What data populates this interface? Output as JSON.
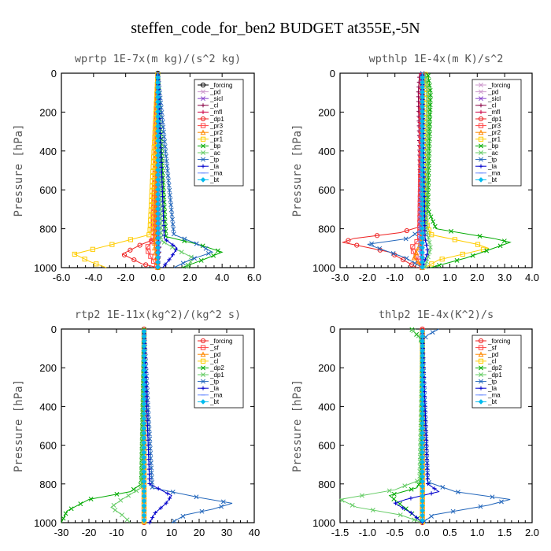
{
  "title": "steffen_code_for_ben2  BUDGET at355E,-5N",
  "chart_data": [
    {
      "type": "line",
      "title": "wprtp  1E-7x(m kg)/(s^2 kg)",
      "ylabel": "Pressure [hPa]",
      "xlim": [
        -6,
        6
      ],
      "ylim": [
        1000,
        0
      ],
      "xticks": [
        "-6.0",
        "-4.0",
        "-2.0",
        "0.0",
        "2.0",
        "4.0",
        "6.0"
      ],
      "yticks": [
        "0",
        "200",
        "400",
        "600",
        "800",
        "1000"
      ],
      "legend_position": "top-right",
      "series": [
        {
          "name": "_forcing",
          "color": "#000000",
          "marker": "o",
          "x": [
            0,
            0,
            0,
            0,
            0
          ],
          "y": [
            0,
            800,
            900,
            950,
            1000
          ]
        },
        {
          "name": "_pd",
          "color": "#cc99cc",
          "marker": "x",
          "x": [
            0,
            0
          ],
          "y": [
            0,
            1000
          ]
        },
        {
          "name": "_sicl",
          "color": "#8844cc",
          "marker": "x",
          "x": [
            0,
            0
          ],
          "y": [
            0,
            1000
          ]
        },
        {
          "name": "_cl",
          "color": "#880044",
          "marker": "+",
          "x": [
            0,
            0,
            0.1,
            0
          ],
          "y": [
            0,
            820,
            900,
            1000
          ]
        },
        {
          "name": "_mfl",
          "color": "#cc0044",
          "marker": "+",
          "x": [
            0,
            0,
            -0.1,
            0
          ],
          "y": [
            0,
            820,
            900,
            1000
          ]
        },
        {
          "name": "_dp1",
          "color": "#ee2222",
          "marker": "o",
          "x": [
            0,
            -0.1,
            -1.0,
            -2.2,
            -1.0,
            0
          ],
          "y": [
            0,
            850,
            880,
            930,
            980,
            1000
          ]
        },
        {
          "name": "_pr3",
          "color": "#ff4444",
          "marker": "s",
          "x": [
            0,
            -0.3,
            -0.7,
            -0.4,
            0
          ],
          "y": [
            0,
            860,
            900,
            950,
            1000
          ]
        },
        {
          "name": "_pr2",
          "color": "#ff8800",
          "marker": "^",
          "x": [
            0,
            -0.2,
            0
          ],
          "y": [
            0,
            900,
            1000
          ]
        },
        {
          "name": "_pr1",
          "color": "#ffcc00",
          "marker": "s",
          "x": [
            0,
            -0.5,
            -2.8,
            -5.2,
            -4.2,
            -3.2
          ],
          "y": [
            0,
            830,
            880,
            930,
            970,
            1000
          ]
        },
        {
          "name": "_bp",
          "color": "#00aa00",
          "marker": "x",
          "x": [
            0,
            0.5,
            2.5,
            4.0,
            2.8,
            1.5
          ],
          "y": [
            0,
            840,
            880,
            920,
            960,
            1000
          ]
        },
        {
          "name": "_ac",
          "color": "#66cc66",
          "marker": "x",
          "x": [
            0,
            0.2,
            1.0,
            2.2,
            1.8
          ],
          "y": [
            0,
            860,
            900,
            950,
            1000
          ]
        },
        {
          "name": "_tp",
          "color": "#2266bb",
          "marker": "x",
          "x": [
            0,
            1.0,
            2.5,
            3.4,
            2.0,
            1.0
          ],
          "y": [
            0,
            830,
            880,
            920,
            960,
            1000
          ]
        },
        {
          "name": "_ta",
          "color": "#0000cc",
          "marker": "+",
          "x": [
            0,
            0.4,
            1.2,
            0.8,
            0.3
          ],
          "y": [
            0,
            850,
            900,
            950,
            1000
          ]
        },
        {
          "name": "_ma",
          "color": "#6688ff",
          "marker": "-",
          "x": [
            0,
            0.1,
            0
          ],
          "y": [
            0,
            900,
            1000
          ]
        },
        {
          "name": "_bt",
          "color": "#00bbee",
          "marker": "D",
          "x": [
            0,
            0,
            0
          ],
          "y": [
            0,
            900,
            1000
          ]
        }
      ]
    },
    {
      "type": "line",
      "title": "wpthlp  1E-4x(m K)/s^2",
      "ylabel": "Pressure [hPa]",
      "xlim": [
        -3,
        4
      ],
      "ylim": [
        1000,
        0
      ],
      "xticks": [
        "-3.0",
        "-2.0",
        "-1.0",
        "0.0",
        "1.0",
        "2.0",
        "3.0",
        "4.0"
      ],
      "yticks": [
        "0",
        "200",
        "400",
        "600",
        "800",
        "1000"
      ],
      "legend_position": "top-right",
      "series": [
        {
          "name": "_forcing",
          "color": "#cc99cc",
          "marker": "x",
          "x": [
            0,
            0,
            0
          ],
          "y": [
            0,
            800,
            1000
          ]
        },
        {
          "name": "_pd",
          "color": "#cc99cc",
          "marker": "x",
          "x": [
            0,
            0,
            0
          ],
          "y": [
            0,
            800,
            1000
          ]
        },
        {
          "name": "_sicl",
          "color": "#8844cc",
          "marker": "x",
          "x": [
            0,
            -0.05,
            -0.1,
            0
          ],
          "y": [
            0,
            100,
            800,
            1000
          ]
        },
        {
          "name": "_cl",
          "color": "#880044",
          "marker": "+",
          "x": [
            -0.1,
            -0.15,
            -0.05,
            0
          ],
          "y": [
            0,
            100,
            800,
            1000
          ]
        },
        {
          "name": "_mfl",
          "color": "#cc0044",
          "marker": "+",
          "x": [
            -0.05,
            -0.1,
            -0.05,
            0
          ],
          "y": [
            0,
            200,
            850,
            1000
          ]
        },
        {
          "name": "_dp1",
          "color": "#ee2222",
          "marker": "o",
          "x": [
            0,
            -0.1,
            -0.8,
            -2.5,
            -2.9,
            -1.2,
            -0.2
          ],
          "y": [
            0,
            790,
            820,
            850,
            870,
            920,
            1000
          ]
        },
        {
          "name": "_pr3",
          "color": "#ff4444",
          "marker": "s",
          "x": [
            0,
            -0.1,
            -0.4,
            0
          ],
          "y": [
            0,
            850,
            900,
            1000
          ]
        },
        {
          "name": "_pr2",
          "color": "#ff8800",
          "marker": "^",
          "x": [
            0,
            0,
            -0.3,
            0
          ],
          "y": [
            0,
            850,
            950,
            1000
          ]
        },
        {
          "name": "_pr1",
          "color": "#ffcc00",
          "marker": "s",
          "x": [
            0.1,
            0.15,
            0.1,
            0.3,
            2.0,
            2.4,
            0.6,
            0.1
          ],
          "y": [
            0,
            100,
            750,
            830,
            880,
            900,
            960,
            1000
          ]
        },
        {
          "name": "_bp",
          "color": "#00aa00",
          "marker": "x",
          "x": [
            0.2,
            0.3,
            0.2,
            0.5,
            2.6,
            3.2,
            1.6,
            0.3
          ],
          "y": [
            0,
            100,
            700,
            800,
            850,
            870,
            950,
            1000
          ]
        },
        {
          "name": "_ac",
          "color": "#66cc66",
          "marker": "x",
          "x": [
            0.1,
            0.2,
            0.15,
            0.3,
            0.1
          ],
          "y": [
            0,
            100,
            800,
            900,
            1000
          ]
        },
        {
          "name": "_tp",
          "color": "#2266bb",
          "marker": "x",
          "x": [
            0,
            0,
            -0.5,
            -2.0,
            -1.6,
            -0.6,
            0
          ],
          "y": [
            0,
            800,
            850,
            880,
            900,
            950,
            1000
          ]
        },
        {
          "name": "_ta",
          "color": "#0000cc",
          "marker": "+",
          "x": [
            0,
            0.1,
            0.2,
            0.1,
            0
          ],
          "y": [
            0,
            850,
            920,
            960,
            1000
          ]
        },
        {
          "name": "_ma",
          "color": "#6688ff",
          "marker": "-",
          "x": [
            0,
            -0.1,
            0
          ],
          "y": [
            0,
            900,
            1000
          ]
        },
        {
          "name": "_bt",
          "color": "#00bbee",
          "marker": "D",
          "x": [
            0,
            0,
            0
          ],
          "y": [
            0,
            900,
            1000
          ]
        }
      ]
    },
    {
      "type": "line",
      "title": "rtp2  1E-11x(kg^2)/(kg^2 s)",
      "ylabel": "Pressure [hPa]",
      "xlim": [
        -30,
        40
      ],
      "ylim": [
        1000,
        0
      ],
      "xticks": [
        "-30",
        "-20",
        "-10",
        "0",
        "10",
        "20",
        "30",
        "40"
      ],
      "yticks": [
        "0",
        "200",
        "400",
        "600",
        "800",
        "1000"
      ],
      "legend_position": "top-right",
      "series": [
        {
          "name": "_forcing",
          "color": "#ee2222",
          "marker": "o",
          "x": [
            0,
            0,
            0
          ],
          "y": [
            0,
            800,
            1000
          ]
        },
        {
          "name": "_sf",
          "color": "#ff4444",
          "marker": "s",
          "x": [
            0,
            0,
            0
          ],
          "y": [
            0,
            800,
            1000
          ]
        },
        {
          "name": "_pd",
          "color": "#ff8800",
          "marker": "^",
          "x": [
            0,
            0,
            0
          ],
          "y": [
            0,
            800,
            1000
          ]
        },
        {
          "name": "_cl",
          "color": "#ffcc00",
          "marker": "s",
          "x": [
            0,
            0,
            0
          ],
          "y": [
            0,
            800,
            1000
          ]
        },
        {
          "name": "_dp2",
          "color": "#00aa00",
          "marker": "x",
          "x": [
            0,
            -1,
            -5,
            -20,
            -28,
            -30
          ],
          "y": [
            0,
            800,
            840,
            880,
            940,
            1000
          ]
        },
        {
          "name": "_dp1",
          "color": "#66cc66",
          "marker": "x",
          "x": [
            0,
            -1,
            -8,
            -12,
            -8,
            -5
          ],
          "y": [
            0,
            820,
            880,
            920,
            960,
            1000
          ]
        },
        {
          "name": "_tp",
          "color": "#2266bb",
          "marker": "x",
          "x": [
            0,
            3,
            20,
            32,
            25,
            15,
            10
          ],
          "y": [
            0,
            820,
            870,
            900,
            930,
            960,
            1000
          ]
        },
        {
          "name": "_ta",
          "color": "#0000cc",
          "marker": "+",
          "x": [
            0,
            2,
            10,
            8,
            4,
            2
          ],
          "y": [
            0,
            800,
            860,
            900,
            950,
            1000
          ]
        },
        {
          "name": "_ma",
          "color": "#6688ff",
          "marker": "-",
          "x": [
            0,
            0,
            0
          ],
          "y": [
            0,
            900,
            1000
          ]
        },
        {
          "name": "_bt",
          "color": "#00bbee",
          "marker": "D",
          "x": [
            0,
            0,
            0
          ],
          "y": [
            0,
            900,
            1000
          ]
        }
      ]
    },
    {
      "type": "line",
      "title": "thlp2  1E-4x(K^2)/s",
      "ylabel": "Pressure [hPa]",
      "xlim": [
        -1.5,
        2.0
      ],
      "ylim": [
        1000,
        0
      ],
      "xticks": [
        "-1.5",
        "-1.0",
        "-0.5",
        "0.0",
        "0.5",
        "1.0",
        "1.5",
        "2.0"
      ],
      "yticks": [
        "0",
        "200",
        "400",
        "600",
        "800",
        "1000"
      ],
      "legend_position": "top-right",
      "series": [
        {
          "name": "_forcing",
          "color": "#ee2222",
          "marker": "o",
          "x": [
            0,
            0,
            0
          ],
          "y": [
            0,
            800,
            1000
          ]
        },
        {
          "name": "_sf",
          "color": "#ff4444",
          "marker": "s",
          "x": [
            0,
            0,
            0
          ],
          "y": [
            0,
            800,
            1000
          ]
        },
        {
          "name": "_pd",
          "color": "#ff8800",
          "marker": "^",
          "x": [
            0,
            0,
            0
          ],
          "y": [
            0,
            800,
            1000
          ]
        },
        {
          "name": "_cl",
          "color": "#ffcc00",
          "marker": "s",
          "x": [
            0,
            0,
            0
          ],
          "y": [
            0,
            800,
            1000
          ]
        },
        {
          "name": "_dp2",
          "color": "#00aa00",
          "marker": "x",
          "x": [
            -0.2,
            -0.1,
            0,
            -0.02,
            -0.1,
            -0.6,
            -0.2,
            0
          ],
          "y": [
            0,
            30,
            60,
            780,
            820,
            860,
            950,
            1000
          ]
        },
        {
          "name": "_dp1",
          "color": "#66cc66",
          "marker": "x",
          "x": [
            -0.2,
            -0.05,
            0,
            -0.05,
            -0.5,
            -1.5,
            -1.2,
            -0.4,
            0
          ],
          "y": [
            0,
            40,
            80,
            780,
            830,
            880,
            920,
            960,
            1000
          ]
        },
        {
          "name": "_tp",
          "color": "#2266bb",
          "marker": "x",
          "x": [
            0.3,
            0.1,
            0,
            0.1,
            0.6,
            1.6,
            1.2,
            0.2,
            0
          ],
          "y": [
            0,
            30,
            60,
            790,
            840,
            880,
            910,
            960,
            1000
          ]
        },
        {
          "name": "_ta",
          "color": "#0000cc",
          "marker": "+",
          "x": [
            0,
            0.1,
            0.3,
            -0.3,
            -0.5,
            -0.2,
            0
          ],
          "y": [
            0,
            800,
            840,
            880,
            900,
            950,
            1000
          ]
        },
        {
          "name": "_ma",
          "color": "#6688ff",
          "marker": "-",
          "x": [
            0,
            0,
            0
          ],
          "y": [
            0,
            900,
            1000
          ]
        },
        {
          "name": "_bt",
          "color": "#00bbee",
          "marker": "D",
          "x": [
            0,
            0,
            0
          ],
          "y": [
            0,
            900,
            1000
          ]
        }
      ]
    }
  ]
}
